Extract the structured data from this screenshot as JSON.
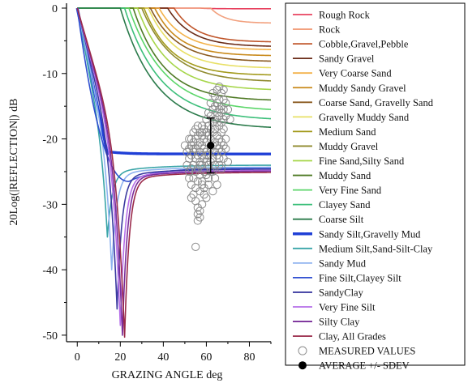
{
  "chart_data": {
    "type": "line",
    "title": "",
    "xlabel": "GRAZING ANGLE  deg",
    "ylabel": "20Log(|REFLECTION|)  dB",
    "xlim": [
      -5,
      90
    ],
    "ylim": [
      -51,
      0
    ],
    "xticks": [
      0,
      20,
      40,
      60,
      80
    ],
    "yticks": [
      0,
      -10,
      -20,
      -30,
      -40,
      -50
    ],
    "grid": false,
    "legend_position": "right",
    "series": [
      {
        "name": "Rough Rock",
        "color": "#e8425f",
        "kind": "shelf",
        "asym": -0.1,
        "crit": 57,
        "k": 0.2
      },
      {
        "name": "Rock",
        "color": "#f2a07e",
        "kind": "shelf",
        "asym": -2.3,
        "crit": 62,
        "k": 0.15
      },
      {
        "name": "Cobble,Gravel,Pebble",
        "color": "#c0552a",
        "kind": "shelf",
        "asym": -5.2,
        "crit": 45,
        "k": 0.1
      },
      {
        "name": "Sandy Gravel",
        "color": "#6b2c18",
        "kind": "shelf",
        "asym": -5.9,
        "crit": 42,
        "k": 0.09
      },
      {
        "name": "Very Coarse Sand",
        "color": "#f3b24a",
        "kind": "shelf",
        "asym": -6.4,
        "crit": 38,
        "k": 0.09
      },
      {
        "name": "Muddy Sandy Gravel",
        "color": "#c98a1b",
        "kind": "shelf",
        "asym": -7.3,
        "crit": 36,
        "k": 0.09
      },
      {
        "name": "Coarse Sand, Gravelly Sand",
        "color": "#8a5a20",
        "kind": "shelf",
        "asym": -8.2,
        "crit": 34,
        "k": 0.08
      },
      {
        "name": "Gravelly Muddy Sand",
        "color": "#e8e066",
        "kind": "shelf",
        "asym": -9.2,
        "crit": 33,
        "k": 0.08
      },
      {
        "name": "Medium Sand",
        "color": "#a39a1c",
        "kind": "shelf",
        "asym": -10.3,
        "crit": 31,
        "k": 0.08
      },
      {
        "name": "Muddy Gravel",
        "color": "#8f8a2e",
        "kind": "shelf",
        "asym": -11.3,
        "crit": 30,
        "k": 0.07
      },
      {
        "name": "Fine Sand,Silty Sand",
        "color": "#a6d64a",
        "kind": "shelf",
        "asym": -12.6,
        "crit": 28,
        "k": 0.07
      },
      {
        "name": "Muddy Sand",
        "color": "#4f7a25",
        "kind": "shelf",
        "asym": -14.2,
        "crit": 26,
        "k": 0.07
      },
      {
        "name": "Very Fine Sand",
        "color": "#5cd66a",
        "kind": "shelf",
        "asym": -15.8,
        "crit": 24,
        "k": 0.06
      },
      {
        "name": "Clayey Sand",
        "color": "#3cbf7a",
        "kind": "shelf",
        "asym": -17.2,
        "crit": 22,
        "k": 0.06
      },
      {
        "name": "Coarse Silt",
        "color": "#2a7a4a",
        "kind": "shelf",
        "asym": -18.5,
        "crit": 20,
        "k": 0.06
      },
      {
        "name": "Sandy Silt,Gravelly Mud",
        "color": "#1f3fd6",
        "kind": "plateau",
        "asym": -22.3,
        "dropEnd": 14,
        "bold": true
      },
      {
        "name": "Medium Silt,Sand-Silt-Clay",
        "color": "#3aa5a8",
        "kind": "notch",
        "asym": -24.0,
        "notchX": 14,
        "notchY": -35
      },
      {
        "name": "Sandy Mud",
        "color": "#8fb3ef",
        "kind": "notch",
        "asym": -24.3,
        "notchX": 16,
        "notchY": -40
      },
      {
        "name": "Fine Silt,Clayey Silt",
        "color": "#2f4fd0",
        "kind": "hump",
        "asym": -24.5,
        "dipX": 24,
        "dipY": -26.5
      },
      {
        "name": "SandyClay",
        "color": "#3b3aa0",
        "kind": "notch",
        "asym": -24.6,
        "notchX": 18.5,
        "notchY": -46
      },
      {
        "name": "Very Fine Silt",
        "color": "#b56ee8",
        "kind": "notch",
        "asym": -24.8,
        "notchX": 20,
        "notchY": -48.5
      },
      {
        "name": "Silty Clay",
        "color": "#7a2e9a",
        "kind": "notch",
        "asym": -24.9,
        "notchX": 21,
        "notchY": -50
      },
      {
        "name": "Clay, All Grades",
        "color": "#9a2a4a",
        "kind": "notch",
        "asym": -25.1,
        "notchX": 22,
        "notchY": -50.3
      }
    ],
    "measured_label": "MEASURED VALUES",
    "average_label": "AVERAGE +/- SDEV",
    "average": {
      "x": 62,
      "y": -21,
      "sdev": 4.2
    },
    "measured_values": [
      [
        55,
        -36.5
      ],
      [
        56,
        -31.5
      ],
      [
        57,
        -31
      ],
      [
        56,
        -30.5
      ],
      [
        58,
        -30
      ],
      [
        55,
        -29.5
      ],
      [
        54,
        -28.5
      ],
      [
        57,
        -28
      ],
      [
        59,
        -27.5
      ],
      [
        53,
        -27
      ],
      [
        56,
        -26.5
      ],
      [
        58,
        -26.5
      ],
      [
        61,
        -26
      ],
      [
        54,
        -26
      ],
      [
        57,
        -25.5
      ],
      [
        60,
        -25.5
      ],
      [
        52,
        -25
      ],
      [
        55,
        -25
      ],
      [
        59,
        -25
      ],
      [
        63,
        -25
      ],
      [
        67,
        -24.5
      ],
      [
        53,
        -24.5
      ],
      [
        56,
        -24.5
      ],
      [
        58,
        -24
      ],
      [
        61,
        -24
      ],
      [
        64,
        -24
      ],
      [
        54,
        -24
      ],
      [
        57,
        -23.5
      ],
      [
        60,
        -23.5
      ],
      [
        62,
        -23.5
      ],
      [
        52,
        -23
      ],
      [
        55,
        -23
      ],
      [
        59,
        -23
      ],
      [
        63,
        -23
      ],
      [
        66,
        -23
      ],
      [
        53,
        -22.5
      ],
      [
        56,
        -22.5
      ],
      [
        58,
        -22.5
      ],
      [
        61,
        -22.5
      ],
      [
        65,
        -22.5
      ],
      [
        51,
        -22
      ],
      [
        54,
        -22
      ],
      [
        57,
        -22
      ],
      [
        60,
        -22
      ],
      [
        64,
        -22
      ],
      [
        67,
        -22
      ],
      [
        52,
        -21.5
      ],
      [
        55,
        -21.5
      ],
      [
        59,
        -21.5
      ],
      [
        62,
        -21.5
      ],
      [
        66,
        -21.5
      ],
      [
        53,
        -21
      ],
      [
        56,
        -21
      ],
      [
        58,
        -21
      ],
      [
        63,
        -21
      ],
      [
        65,
        -21
      ],
      [
        68,
        -21
      ],
      [
        54,
        -20.5
      ],
      [
        57,
        -20.5
      ],
      [
        60,
        -20.5
      ],
      [
        64,
        -20.5
      ],
      [
        52,
        -20
      ],
      [
        55,
        -20
      ],
      [
        59,
        -20
      ],
      [
        62,
        -20
      ],
      [
        66,
        -20
      ],
      [
        69,
        -20
      ],
      [
        56,
        -19.5
      ],
      [
        58,
        -19.5
      ],
      [
        61,
        -19.5
      ],
      [
        65,
        -19.5
      ],
      [
        54,
        -19
      ],
      [
        57,
        -19
      ],
      [
        60,
        -19
      ],
      [
        63,
        -19
      ],
      [
        67,
        -19
      ],
      [
        55,
        -18.5
      ],
      [
        59,
        -18.5
      ],
      [
        62,
        -18.5
      ],
      [
        64,
        -18.5
      ],
      [
        68,
        -18.5
      ],
      [
        56,
        -18
      ],
      [
        58,
        -18
      ],
      [
        61,
        -18
      ],
      [
        66,
        -18
      ],
      [
        63,
        -17.5
      ],
      [
        65,
        -17.5
      ],
      [
        67,
        -17.5
      ],
      [
        60,
        -17
      ],
      [
        64,
        -17
      ],
      [
        68,
        -17
      ],
      [
        62,
        -16.5
      ],
      [
        66,
        -16.5
      ],
      [
        69,
        -16.5
      ],
      [
        61,
        -16
      ],
      [
        65,
        -16
      ],
      [
        67,
        -16
      ],
      [
        63,
        -15.5
      ],
      [
        66,
        -15.5
      ],
      [
        68,
        -15.5
      ],
      [
        64,
        -15
      ],
      [
        67,
        -15
      ],
      [
        62,
        -14.5
      ],
      [
        65,
        -14.5
      ],
      [
        69,
        -14.5
      ],
      [
        66,
        -14
      ],
      [
        68,
        -14
      ],
      [
        64,
        -13.5
      ],
      [
        67,
        -13
      ],
      [
        65,
        -12.5
      ],
      [
        68,
        -12.5
      ],
      [
        66,
        -12
      ],
      [
        63,
        -13
      ],
      [
        70,
        -15.5
      ],
      [
        60,
        -22.5
      ],
      [
        58,
        -19
      ],
      [
        71,
        -17
      ],
      [
        57,
        -24
      ],
      [
        54,
        -21.5
      ],
      [
        53,
        -20
      ],
      [
        51,
        -24
      ],
      [
        50,
        -21
      ],
      [
        61,
        -27
      ],
      [
        59,
        -28.5
      ],
      [
        62,
        -25
      ],
      [
        66,
        -24
      ],
      [
        68,
        -23
      ],
      [
        70,
        -23.5
      ],
      [
        64,
        -26
      ],
      [
        69,
        -21.5
      ],
      [
        67,
        -20.5
      ],
      [
        65,
        -27
      ],
      [
        63,
        -28
      ],
      [
        60,
        -29
      ],
      [
        58,
        -27
      ],
      [
        55,
        -27.5
      ],
      [
        53,
        -29
      ],
      [
        57,
        -32
      ],
      [
        56,
        -32.5
      ],
      [
        52,
        -26
      ]
    ]
  }
}
